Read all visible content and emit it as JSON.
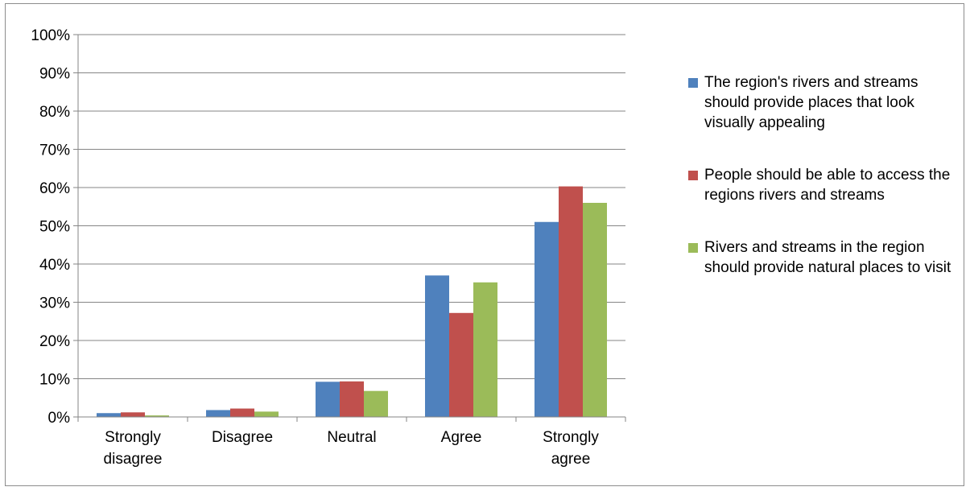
{
  "chart_data": {
    "type": "bar",
    "title": "",
    "xlabel": "",
    "ylabel": "",
    "ylim": [
      0,
      100
    ],
    "y_ticks": [
      "0%",
      "10%",
      "20%",
      "30%",
      "40%",
      "50%",
      "60%",
      "70%",
      "80%",
      "90%",
      "100%"
    ],
    "y_tick_values": [
      0,
      10,
      20,
      30,
      40,
      50,
      60,
      70,
      80,
      90,
      100
    ],
    "grid": true,
    "legend_position": "right",
    "categories": [
      [
        "Strongly",
        "disagree"
      ],
      [
        "Disagree"
      ],
      [
        "Neutral"
      ],
      [
        "Agree"
      ],
      [
        "Strongly",
        "agree"
      ]
    ],
    "series": [
      {
        "name": "The region's rivers and streams should provide places that look visually appealing",
        "color": "#4f81bd",
        "values": [
          1,
          1.8,
          9.2,
          37,
          51
        ]
      },
      {
        "name": "People should be able to access the regions rivers and streams",
        "color": "#c0504d",
        "values": [
          1.2,
          2.2,
          9.3,
          27.2,
          60.3
        ]
      },
      {
        "name": "Rivers and streams in the region should provide natural places to visit",
        "color": "#9bbb59",
        "values": [
          0.4,
          1.4,
          6.8,
          35.2,
          56
        ]
      }
    ]
  }
}
